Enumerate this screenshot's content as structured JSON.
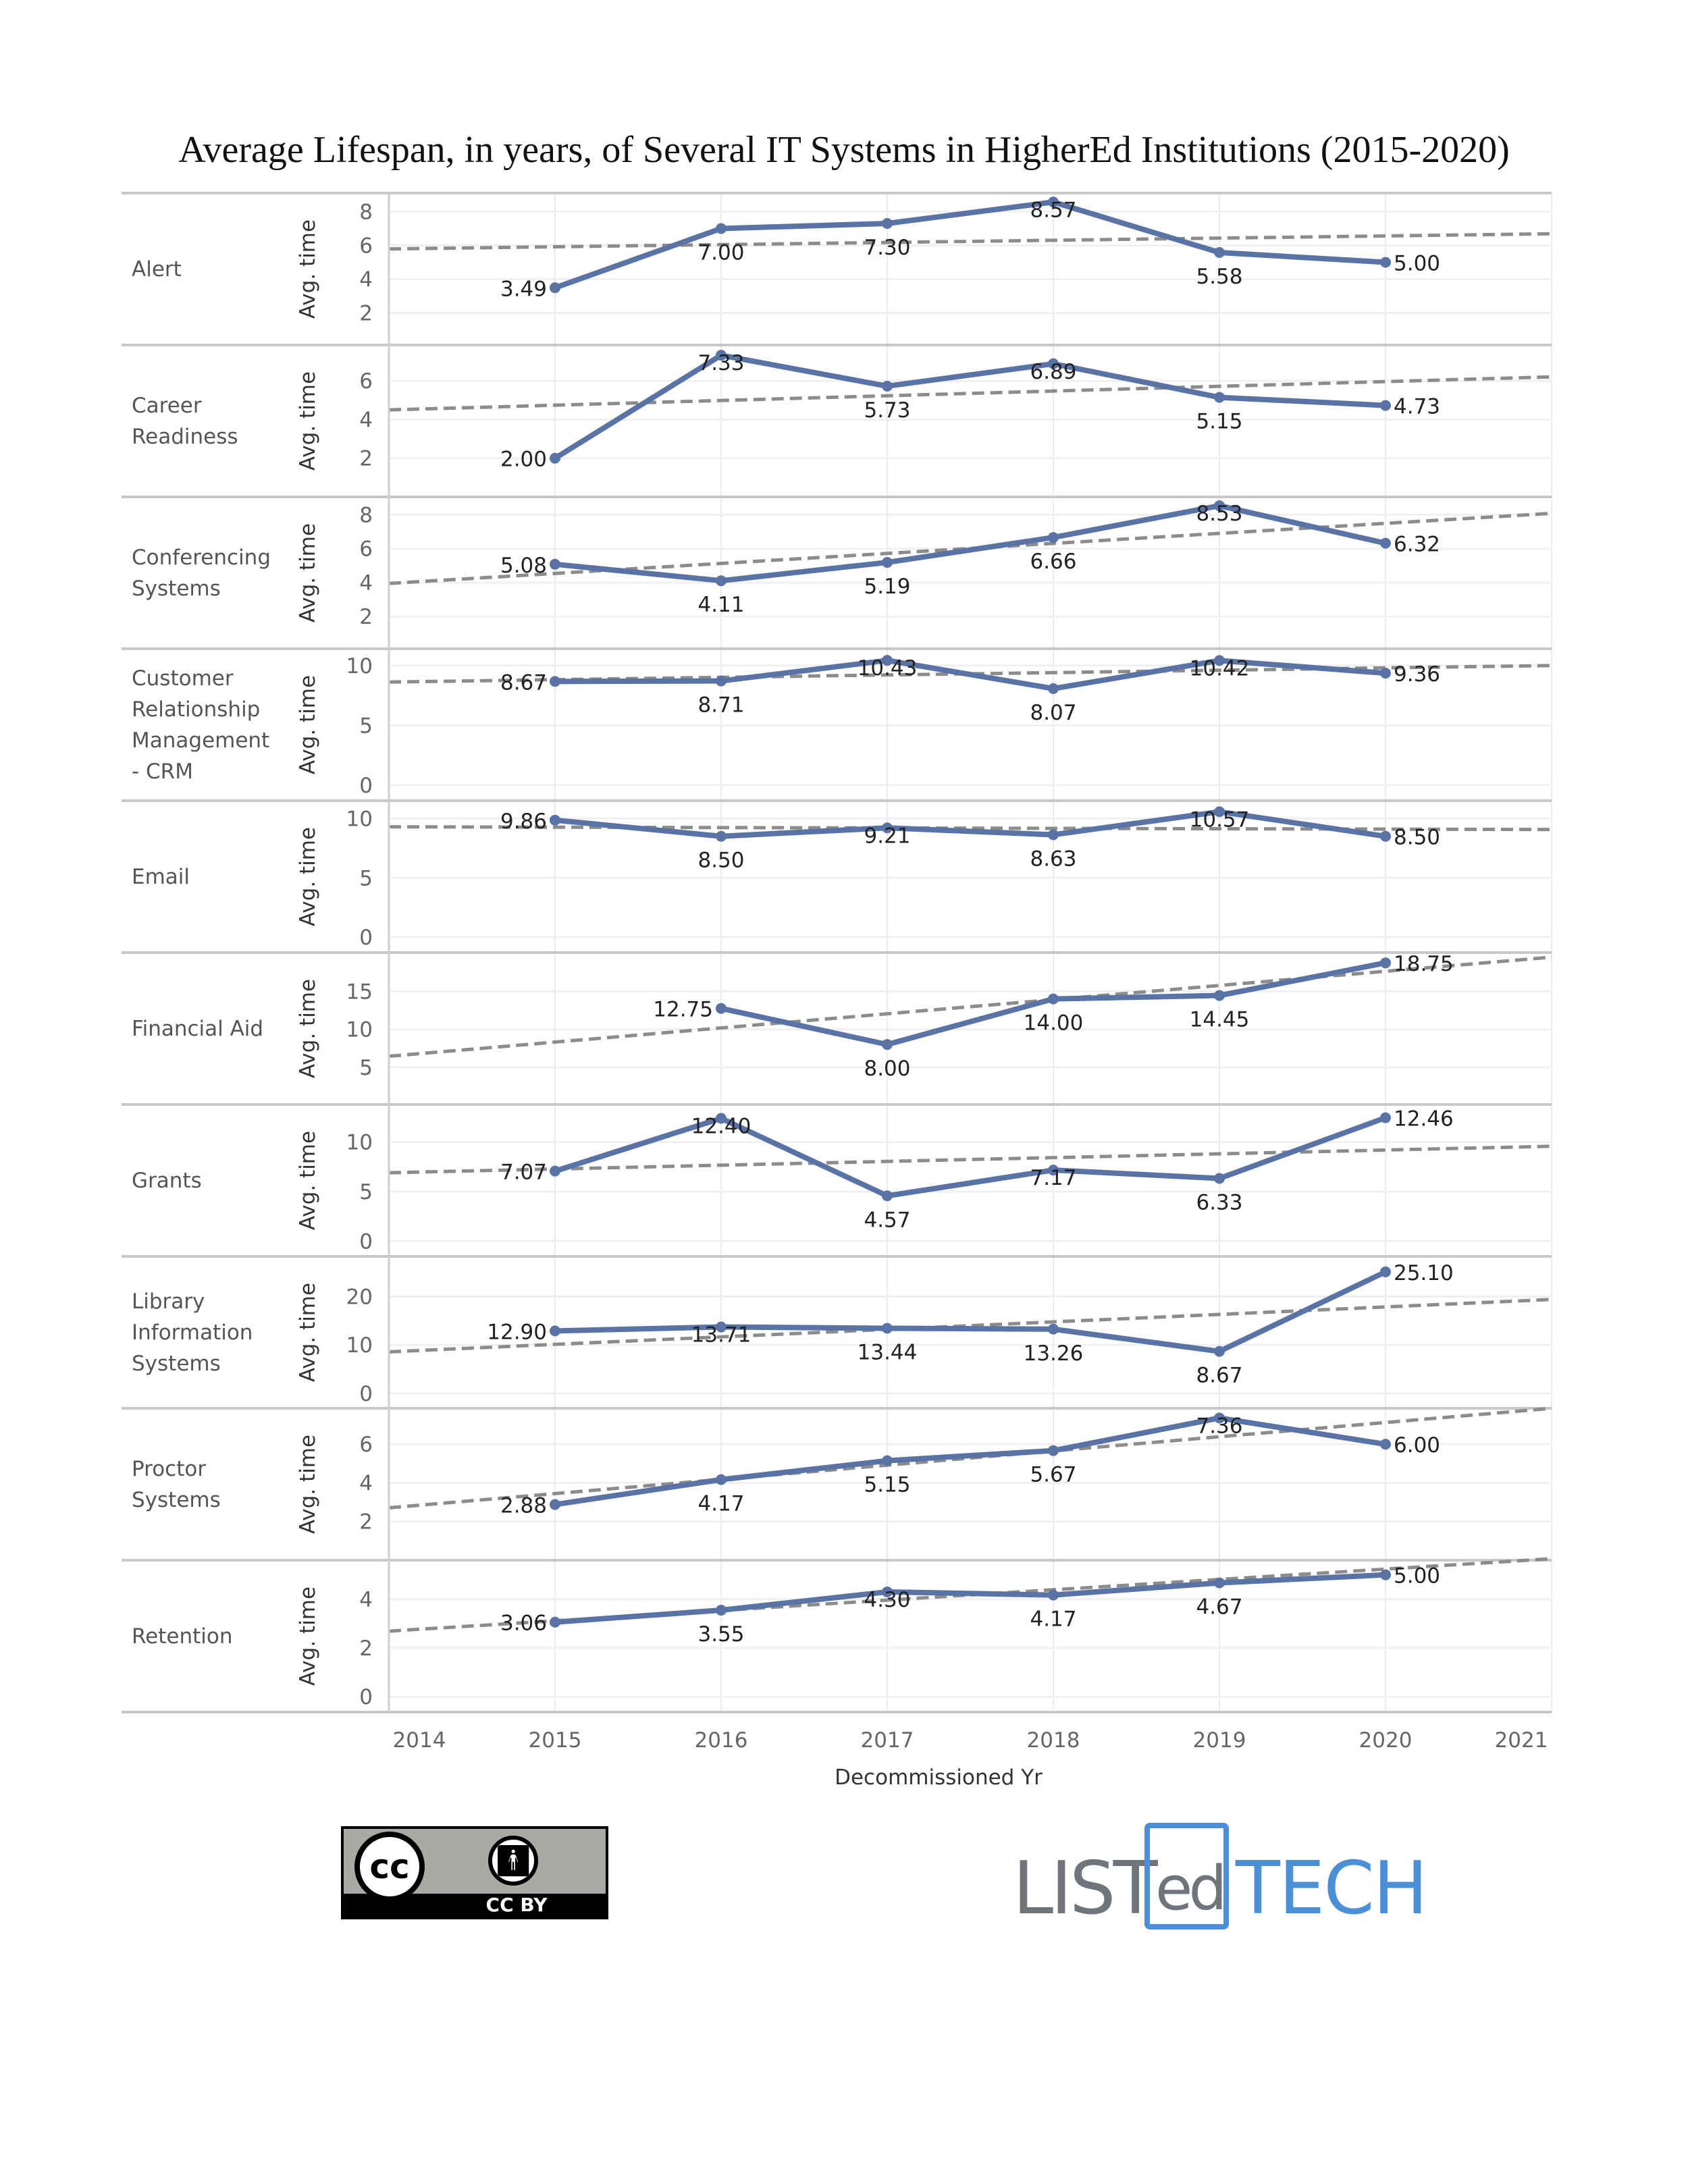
{
  "chart_data": {
    "type": "line",
    "title": "Average Lifespan, in years, of Several IT Systems in HigherEd Institutions (2015-2020)",
    "xlabel": "Decommissioned Yr",
    "ylabel": "Avg. time",
    "x_ticks": [
      "2014",
      "2015",
      "2016",
      "2017",
      "2018",
      "2019",
      "2020",
      "2021"
    ],
    "xlim": [
      2014,
      2021
    ],
    "grid": true,
    "line_color": "#5a73a6",
    "trend_color": "#8c8c8c",
    "panels": [
      {
        "name": "Alert",
        "label_lines": [
          "Alert"
        ],
        "ylim": [
          0.1,
          9.1
        ],
        "yticks": [
          2,
          4,
          6,
          8
        ],
        "x": [
          2015,
          2016,
          2017,
          2018,
          2019,
          2020
        ],
        "values": [
          3.49,
          7.0,
          7.3,
          8.57,
          5.58,
          5.0
        ],
        "labels": [
          "3.49",
          "7.00",
          "7.30",
          "8.57",
          "5.58",
          "5.00"
        ],
        "trend": [
          5.79,
          6.69
        ]
      },
      {
        "name": "Career Readiness",
        "label_lines": [
          "Career",
          "Readiness"
        ],
        "ylim": [
          0,
          7.86
        ],
        "yticks": [
          2,
          4,
          6
        ],
        "x": [
          2015,
          2016,
          2017,
          2018,
          2019,
          2020
        ],
        "values": [
          2.0,
          7.33,
          5.73,
          6.89,
          5.15,
          4.73
        ],
        "labels": [
          "2.00",
          "7.33",
          "5.73",
          "6.89",
          "5.15",
          "4.73"
        ],
        "trend": [
          4.5,
          6.21
        ]
      },
      {
        "name": "Conferencing Systems",
        "label_lines": [
          "Conferencing",
          "Systems"
        ],
        "ylim": [
          0.1,
          9.05
        ],
        "yticks": [
          2,
          4,
          6,
          8
        ],
        "x": [
          2015,
          2016,
          2017,
          2018,
          2019,
          2020
        ],
        "values": [
          5.08,
          4.11,
          5.19,
          6.66,
          8.53,
          6.32
        ],
        "labels": [
          "5.08",
          "4.11",
          "5.19",
          "6.66",
          "8.53",
          "6.32"
        ],
        "trend": [
          3.95,
          8.08
        ]
      },
      {
        "name": "Customer Relationship Management - CRM",
        "label_lines": [
          "Customer",
          "Relationship",
          "Management",
          "- CRM"
        ],
        "ylim": [
          -1.3,
          11.4
        ],
        "yticks": [
          0,
          5,
          10
        ],
        "x": [
          2015,
          2016,
          2017,
          2018,
          2019,
          2020
        ],
        "values": [
          8.67,
          8.71,
          10.43,
          8.07,
          10.42,
          9.36
        ],
        "labels": [
          "8.67",
          "8.71",
          "10.43",
          "8.07",
          "10.42",
          "9.36"
        ],
        "trend": [
          8.62,
          10.0
        ]
      },
      {
        "name": "Email",
        "label_lines": [
          "Email"
        ],
        "ylim": [
          -1.3,
          11.5
        ],
        "yticks": [
          0,
          5,
          10
        ],
        "x": [
          2015,
          2016,
          2017,
          2018,
          2019,
          2020
        ],
        "values": [
          9.86,
          8.5,
          9.21,
          8.63,
          10.57,
          8.5
        ],
        "labels": [
          "9.86",
          "8.50",
          "9.21",
          "8.63",
          "10.57",
          "8.50"
        ],
        "trend": [
          9.3,
          9.07
        ]
      },
      {
        "name": "Financial Aid",
        "label_lines": [
          "Financial Aid"
        ],
        "ylim": [
          0.1,
          20.1
        ],
        "yticks": [
          5,
          10,
          15
        ],
        "x": [
          2016,
          2017,
          2018,
          2019,
          2020
        ],
        "values": [
          12.75,
          8.0,
          14.0,
          14.45,
          18.75
        ],
        "labels": [
          "12.75",
          "8.00",
          "14.00",
          "14.45",
          "18.75"
        ],
        "trend": [
          6.45,
          19.5
        ]
      },
      {
        "name": "Grants",
        "label_lines": [
          "Grants"
        ],
        "ylim": [
          -1.55,
          13.8
        ],
        "yticks": [
          0,
          5,
          10
        ],
        "x": [
          2015,
          2016,
          2017,
          2018,
          2019,
          2020
        ],
        "values": [
          7.07,
          12.4,
          4.57,
          7.17,
          6.33,
          12.46
        ],
        "labels": [
          "7.07",
          "12.40",
          "4.57",
          "7.17",
          "6.33",
          "12.46"
        ],
        "trend": [
          6.9,
          9.58
        ]
      },
      {
        "name": "Library Information Systems",
        "label_lines": [
          "Library",
          "Information",
          "Systems"
        ],
        "ylim": [
          -3.1,
          28.3
        ],
        "yticks": [
          0,
          10,
          20
        ],
        "x": [
          2015,
          2016,
          2017,
          2018,
          2019,
          2020
        ],
        "values": [
          12.9,
          13.71,
          13.44,
          13.26,
          8.67,
          25.1
        ],
        "labels": [
          "12.90",
          "13.71",
          "13.44",
          "13.26",
          "8.67",
          "25.10"
        ],
        "trend": [
          8.57,
          19.4
        ]
      },
      {
        "name": "Proctor Systems",
        "label_lines": [
          "Proctor",
          "Systems"
        ],
        "ylim": [
          0,
          7.86
        ],
        "yticks": [
          2,
          4,
          6
        ],
        "x": [
          2015,
          2016,
          2017,
          2018,
          2019,
          2020
        ],
        "values": [
          2.88,
          4.17,
          5.15,
          5.67,
          7.36,
          6.0
        ],
        "labels": [
          "2.88",
          "4.17",
          "5.15",
          "5.67",
          "7.36",
          "6.00"
        ],
        "trend": [
          2.71,
          7.86
        ]
      },
      {
        "name": "Retention",
        "label_lines": [
          "Retention"
        ],
        "ylim": [
          -0.63,
          5.6
        ],
        "yticks": [
          0,
          2,
          4
        ],
        "x": [
          2015,
          2016,
          2017,
          2018,
          2019,
          2020
        ],
        "values": [
          3.06,
          3.55,
          4.3,
          4.17,
          4.67,
          5.0
        ],
        "labels": [
          "3.06",
          "3.55",
          "4.30",
          "4.17",
          "4.67",
          "5.00"
        ],
        "trend": [
          2.69,
          5.66
        ]
      }
    ]
  },
  "footer": {
    "license_logo_text": "CC BY",
    "brand_logo_text": "LISTedTECH"
  }
}
